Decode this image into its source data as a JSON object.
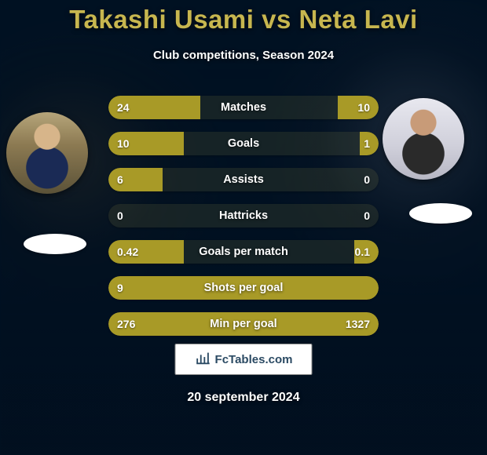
{
  "title": "Takashi Usami vs Neta Lavi",
  "subtitle": "Club competitions, Season 2024",
  "date": "20 september 2024",
  "brand": "FcTables.com",
  "colors": {
    "title": "#c7b64f",
    "bar_left": "#a89a27",
    "bar_right": "#a89a27",
    "track": "rgba(180,170,70,0.12)"
  },
  "player_left": {
    "name": "Takashi Usami"
  },
  "player_right": {
    "name": "Neta Lavi"
  },
  "rows": [
    {
      "label": "Matches",
      "left": "24",
      "right": "10",
      "left_pct": 34,
      "right_pct": 15
    },
    {
      "label": "Goals",
      "left": "10",
      "right": "1",
      "left_pct": 28,
      "right_pct": 7
    },
    {
      "label": "Assists",
      "left": "6",
      "right": "0",
      "left_pct": 20,
      "right_pct": 0
    },
    {
      "label": "Hattricks",
      "left": "0",
      "right": "0",
      "left_pct": 0,
      "right_pct": 0
    },
    {
      "label": "Goals per match",
      "left": "0.42",
      "right": "0.1",
      "left_pct": 28,
      "right_pct": 9
    },
    {
      "label": "Shots per goal",
      "left": "9",
      "right": "",
      "left_pct": 100,
      "right_pct": 0
    },
    {
      "label": "Min per goal",
      "left": "276",
      "right": "1327",
      "left_pct": 100,
      "right_pct": 0
    }
  ]
}
